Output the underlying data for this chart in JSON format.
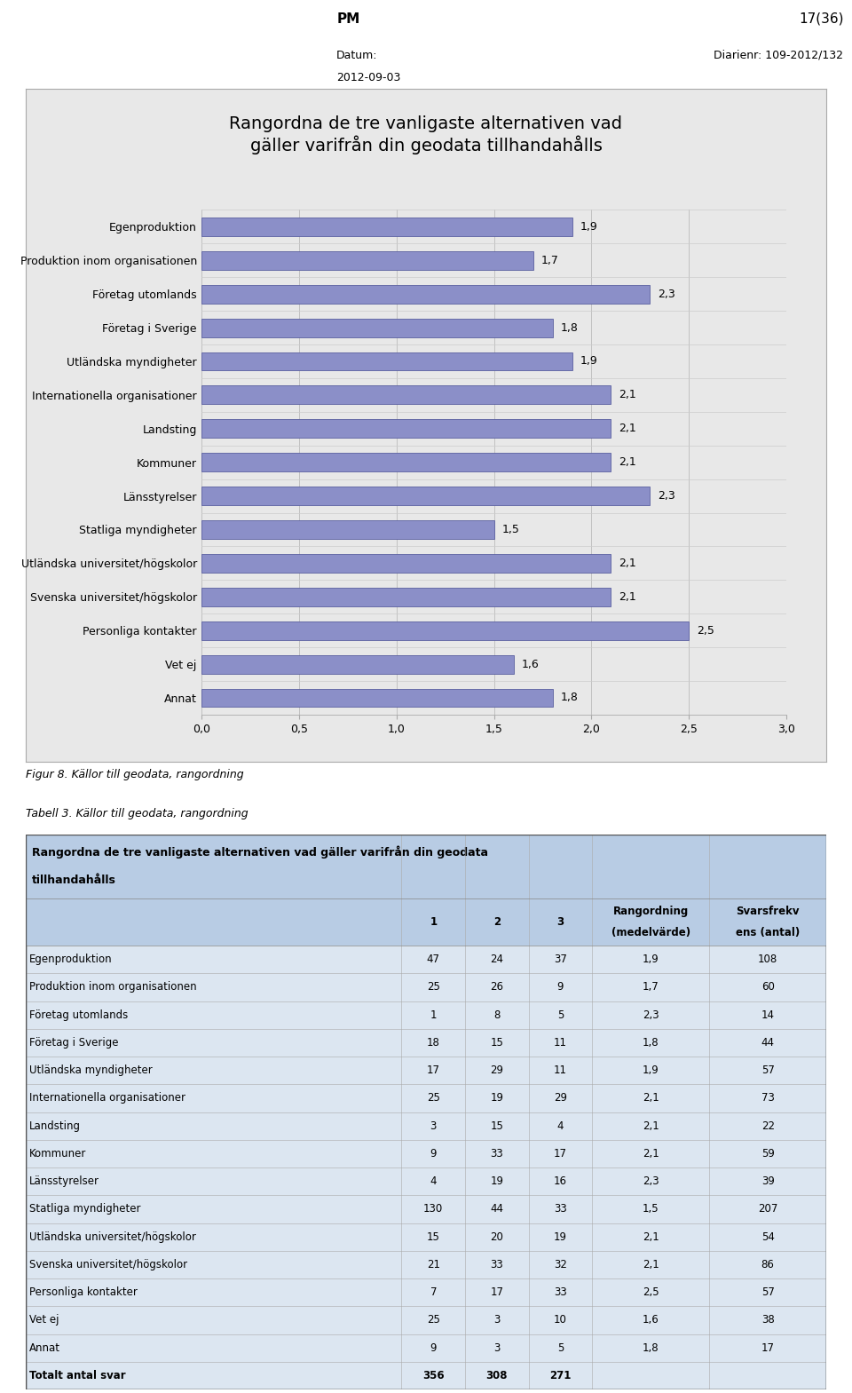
{
  "header_left": "PM",
  "header_right": "17(36)",
  "subheader_label": "Datum:",
  "subheader_date": "2012-09-03",
  "subheader_right": "Diarienr: 109-2012/132",
  "chart_title": "Rangordna de tre vanligaste alternativen vad\ngäller varifrån din geodata tillhandahålls",
  "categories": [
    "Annat",
    "Vet ej",
    "Personliga kontakter",
    "Svenska universitet/högskolor",
    "Utländska universitet/högskolor",
    "Statliga myndigheter",
    "Länsstyrelser",
    "Kommuner",
    "Landsting",
    "Internationella organisationer",
    "Utländska myndigheter",
    "Företag i Sverige",
    "Företag utomlands",
    "Produktion inom organisationen",
    "Egenproduktion"
  ],
  "values": [
    1.8,
    1.6,
    2.5,
    2.1,
    2.1,
    1.5,
    2.3,
    2.1,
    2.1,
    2.1,
    1.9,
    1.8,
    2.3,
    1.7,
    1.9
  ],
  "value_labels": [
    "1,8",
    "1,6",
    "2,5",
    "2,1",
    "2,1",
    "1,5",
    "2,3",
    "2,1",
    "2,1",
    "2,1",
    "1,9",
    "1,8",
    "2,3",
    "1,7",
    "1,9"
  ],
  "bar_color": "#8b8fc8",
  "bar_edge_color": "#5a5fa0",
  "xlim": [
    0.0,
    3.0
  ],
  "xticks": [
    0.0,
    0.5,
    1.0,
    1.5,
    2.0,
    2.5,
    3.0
  ],
  "xtick_labels": [
    "0,0",
    "0,5",
    "1,0",
    "1,5",
    "2,0",
    "2,5",
    "3,0"
  ],
  "chart_bg": "#e8e8e8",
  "chart_border": "#aaaaaa",
  "fig_caption": "Figur 8. Källor till geodata, rangordning",
  "table_caption": "Tabell 3. Källor till geodata, rangordning",
  "table_title_line1": "Rangordna de tre vanligaste alternativen vad gäller varifrån din geodata",
  "table_title_line2": "tillhandahålls",
  "table_col_headers": [
    "",
    "1",
    "2",
    "3",
    "Rangordning\n(medelvärde)",
    "Svarsfrekv\nens (antal)"
  ],
  "table_rows": [
    [
      "Egenproduktion",
      "47",
      "24",
      "37",
      "1,9",
      "108"
    ],
    [
      "Produktion inom organisationen",
      "25",
      "26",
      "9",
      "1,7",
      "60"
    ],
    [
      "Företag utomlands",
      "1",
      "8",
      "5",
      "2,3",
      "14"
    ],
    [
      "Företag i Sverige",
      "18",
      "15",
      "11",
      "1,8",
      "44"
    ],
    [
      "Utländska myndigheter",
      "17",
      "29",
      "11",
      "1,9",
      "57"
    ],
    [
      "Internationella organisationer",
      "25",
      "19",
      "29",
      "2,1",
      "73"
    ],
    [
      "Landsting",
      "3",
      "15",
      "4",
      "2,1",
      "22"
    ],
    [
      "Kommuner",
      "9",
      "33",
      "17",
      "2,1",
      "59"
    ],
    [
      "Länsstyrelser",
      "4",
      "19",
      "16",
      "2,3",
      "39"
    ],
    [
      "Statliga myndigheter",
      "130",
      "44",
      "33",
      "1,5",
      "207"
    ],
    [
      "Utländska universitet/högskolor",
      "15",
      "20",
      "19",
      "2,1",
      "54"
    ],
    [
      "Svenska universitet/högskolor",
      "21",
      "33",
      "32",
      "2,1",
      "86"
    ],
    [
      "Personliga kontakter",
      "7",
      "17",
      "33",
      "2,5",
      "57"
    ],
    [
      "Vet ej",
      "25",
      "3",
      "10",
      "1,6",
      "38"
    ],
    [
      "Annat",
      "9",
      "3",
      "5",
      "1,8",
      "17"
    ],
    [
      "Totalt antal svar",
      "356",
      "308",
      "271",
      "",
      ""
    ]
  ],
  "table_bg_light": "#dce6f1",
  "table_bg_header": "#b8cce4",
  "table_border": "#555555",
  "outer_bg": "#ffffff",
  "grid_color": "#bbbbbb",
  "col_widths_rel": [
    0.385,
    0.065,
    0.065,
    0.065,
    0.12,
    0.12
  ]
}
